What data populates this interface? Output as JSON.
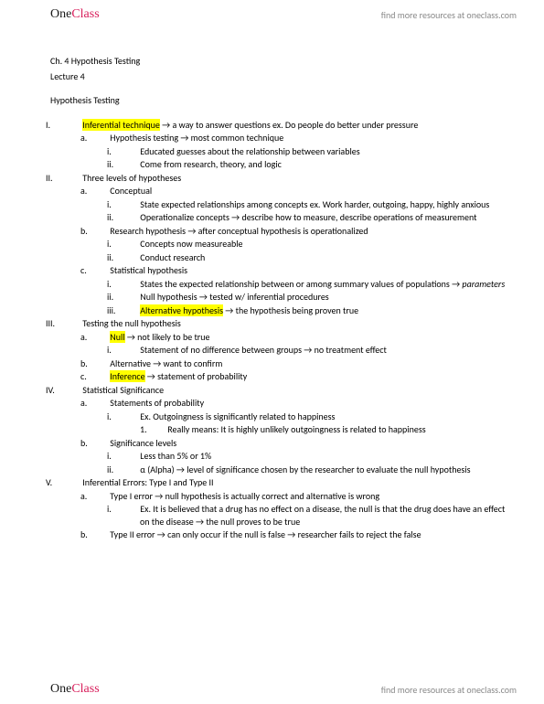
{
  "brand": {
    "part1": "One",
    "part2": "Class"
  },
  "resources_link": "find more resources at oneclass.com",
  "colors": {
    "highlight": "#ffff00",
    "brand_accent": "#d81e5b",
    "brand_dark": "#1a1a1a",
    "link_gray": "#888888",
    "bg": "#ffffff",
    "text": "#000000"
  },
  "title_line1": "Ch. 4 Hypothesis Testing",
  "title_line2": "Lecture 4",
  "section_heading": "Hypothesis Testing",
  "outline": {
    "I": {
      "marker": "I.",
      "hl": "Inferential technique",
      "rest": " → a way to answer questions ex. Do people do better under pressure",
      "a": {
        "marker": "a.",
        "text": "Hypothesis testing → most common technique",
        "i": {
          "marker": "i.",
          "text": "Educated guesses about the relationship between variables"
        },
        "ii": {
          "marker": "ii.",
          "text": "Come from research, theory, and logic"
        }
      }
    },
    "II": {
      "marker": "II.",
      "text": "Three levels of hypotheses",
      "a": {
        "marker": "a.",
        "text": "Conceptual",
        "i": {
          "marker": "i.",
          "text": "State expected relationships among concepts ex. Work harder, outgoing, happy, highly anxious"
        },
        "ii": {
          "marker": "ii.",
          "text": "Operationalize concepts → describe how to measure, describe operations of measurement"
        }
      },
      "b": {
        "marker": "b.",
        "text": "Research hypothesis → after conceptual hypothesis is operationalized",
        "i": {
          "marker": "i.",
          "text": "Concepts now measureable"
        },
        "ii": {
          "marker": "ii.",
          "text": "Conduct research"
        }
      },
      "c": {
        "marker": "c.",
        "text": "Statistical hypothesis",
        "i": {
          "marker": "i.",
          "pre": "States the expected relationship between or among summary values of populations → ",
          "italic": "parameters"
        },
        "ii": {
          "marker": "ii.",
          "text": "Null hypothesis → tested w/ inferential procedures"
        },
        "iii": {
          "marker": "iii.",
          "hl": "Alternative hypothesis",
          "rest": " → the hypothesis being proven true"
        }
      }
    },
    "III": {
      "marker": "III.",
      "text": "Testing the null hypothesis",
      "a": {
        "marker": "a.",
        "hl": "Null",
        "rest": " → not likely to be true",
        "i": {
          "marker": "i.",
          "text": "Statement of no difference between groups → no treatment effect"
        }
      },
      "b": {
        "marker": "b.",
        "text": "Alternative → want to confirm"
      },
      "c": {
        "marker": "c.",
        "hl": "Inference",
        "rest": " → statement of probability"
      }
    },
    "IV": {
      "marker": "IV.",
      "text": "Statistical Significance",
      "a": {
        "marker": "a.",
        "text": "Statements of probability",
        "i": {
          "marker": "i.",
          "text": "Ex. Outgoingness is significantly related to happiness",
          "one": {
            "marker": "1.",
            "text": "Really means: It is highly unlikely outgoingness is related to happiness"
          }
        }
      },
      "b": {
        "marker": "b.",
        "text": "Significance levels",
        "i": {
          "marker": "i.",
          "text": "Less than 5% or 1%"
        },
        "ii": {
          "marker": "ii.",
          "text": "α (Alpha) → level of significance chosen by the researcher to evaluate the null hypothesis"
        }
      }
    },
    "V": {
      "marker": "V.",
      "text": "Inferential Errors: Type I and Type II",
      "a": {
        "marker": "a.",
        "text": "Type I error → null hypothesis is actually correct and alternative is wrong",
        "i": {
          "marker": "i.",
          "text": "Ex. It is believed that a drug has no effect on a disease, the null is that the drug does have an effect on the disease → the null proves to be true"
        }
      },
      "b": {
        "marker": "b.",
        "text": "Type II error → can only occur if the null is false → researcher fails to reject the false"
      }
    }
  }
}
